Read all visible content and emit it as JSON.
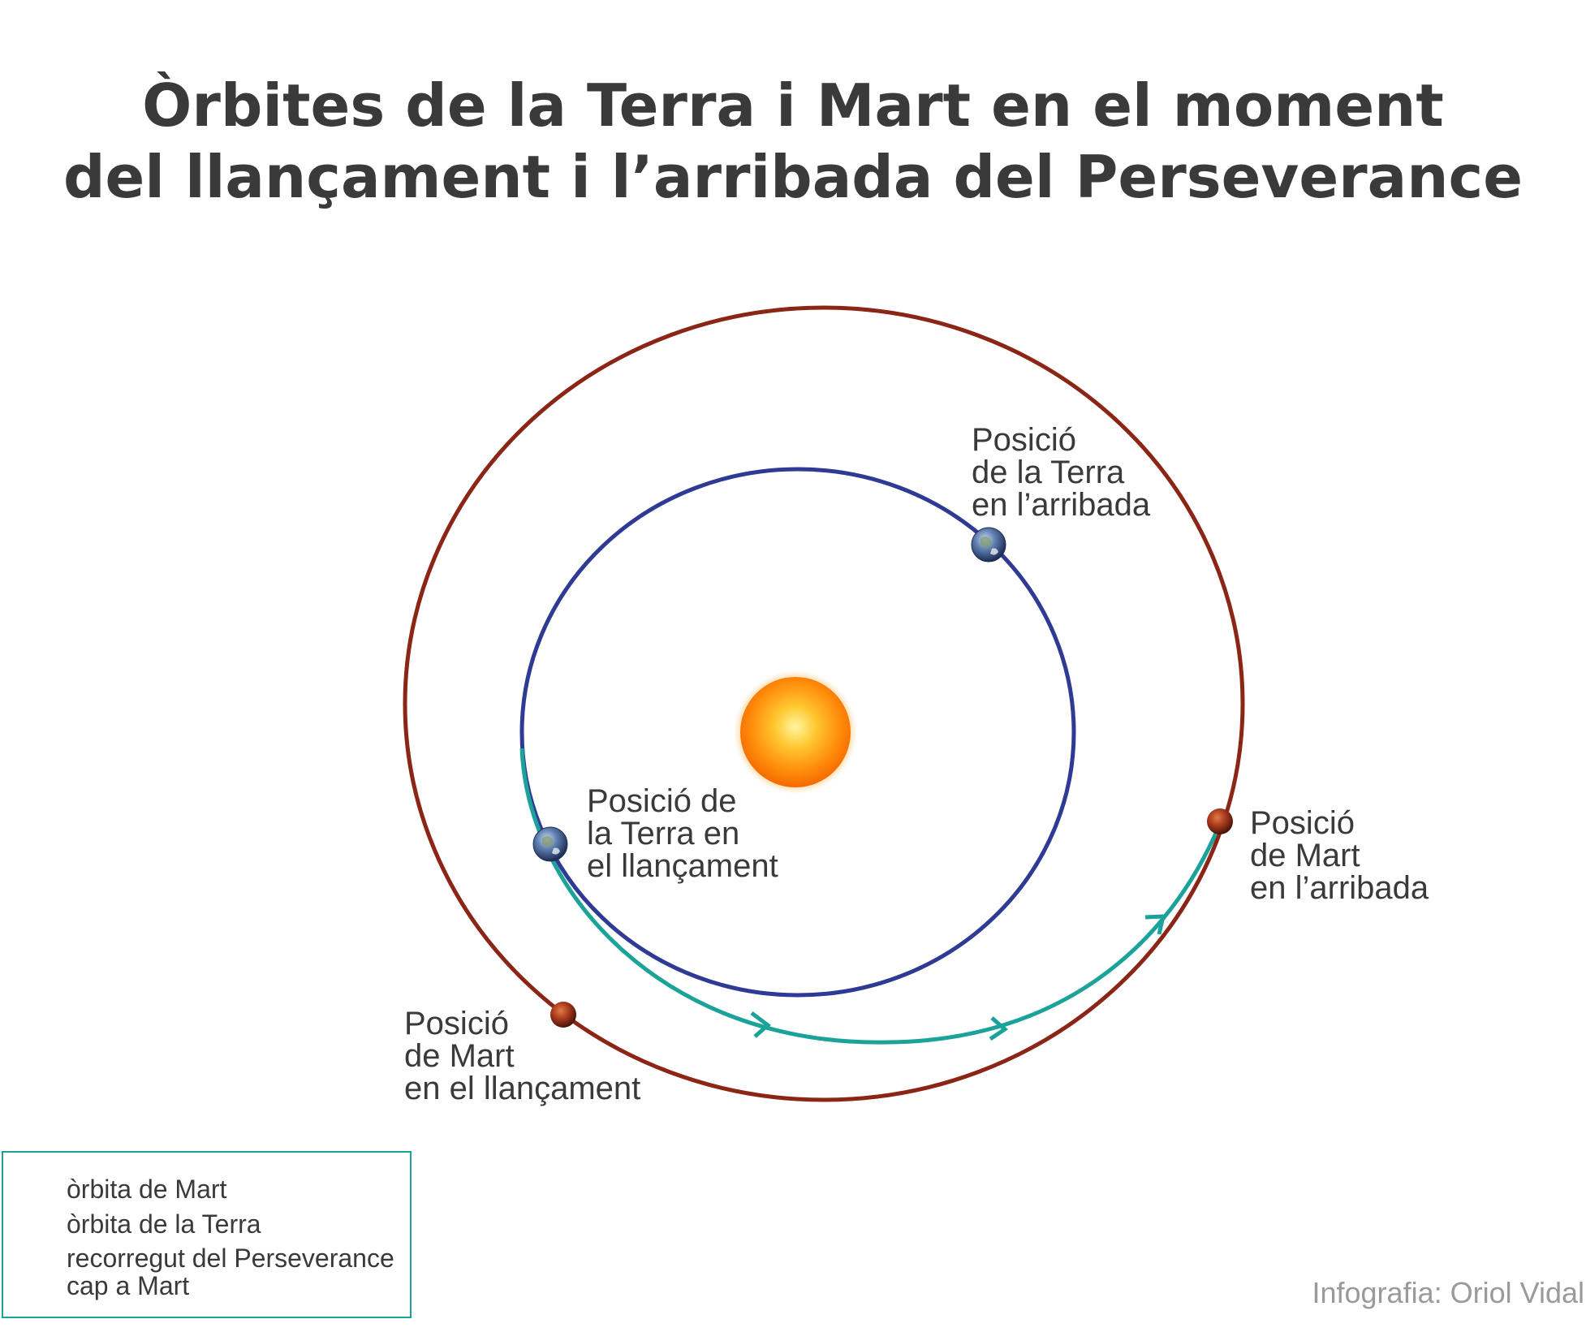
{
  "title": {
    "line1": "Òrbites de la Terra i Mart en el moment",
    "line2": "del llançament i l’arribada del Perseverance"
  },
  "colors": {
    "mars_orbit": "#8b2515",
    "earth_orbit": "#2e3a93",
    "trajectory": "#1ba39a",
    "text": "#3a3a3a",
    "credit": "#9a9a9a"
  },
  "labels": {
    "earth_arrival": [
      "Posició",
      "de la Terra",
      "en l’arribada"
    ],
    "earth_launch": [
      "Posició de",
      "la Terra en",
      "el llançament"
    ],
    "mars_arrival": [
      "Posició",
      "de Mart",
      "en l’arribada"
    ],
    "mars_launch": [
      "Posició",
      "de Mart",
      "en el llançament"
    ]
  },
  "legend": {
    "items": [
      {
        "label": "òrbita de Mart",
        "type": "line"
      },
      {
        "label": "òrbita de la Terra",
        "type": "line"
      },
      {
        "label_line1": "recorregut del Perseverance",
        "label_line2": "cap a Mart",
        "type": "arrow"
      }
    ]
  },
  "credit": "Infografia: Oriol Vidal",
  "icons": {
    "sun": "sun-icon",
    "earth": "earth-icon",
    "mars": "mars-icon"
  }
}
